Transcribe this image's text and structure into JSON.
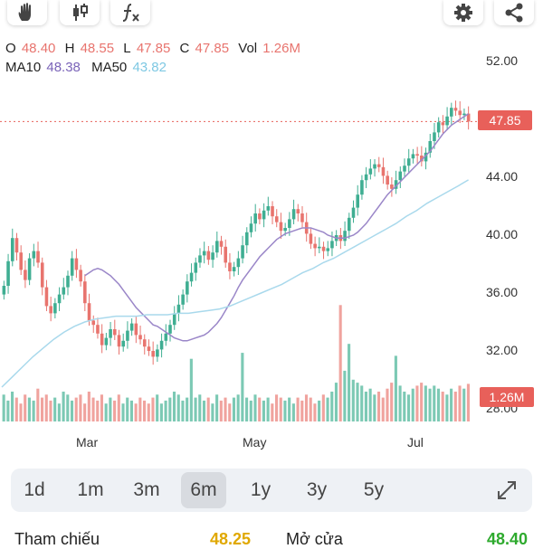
{
  "toolbar": {
    "left": [
      {
        "name": "hand-icon"
      },
      {
        "name": "candlestick-icon"
      },
      {
        "name": "function-icon"
      }
    ],
    "right": [
      {
        "name": "gear-icon"
      },
      {
        "name": "share-icon"
      }
    ]
  },
  "ohlc": {
    "o_label": "O",
    "o_value": "48.40",
    "h_label": "H",
    "h_value": "48.55",
    "l_label": "L",
    "l_value": "47.85",
    "c_label": "C",
    "c_value": "47.85",
    "vol_label": "Vol",
    "vol_value": "1.26M"
  },
  "ma": {
    "ma10_label": "MA10",
    "ma10_value": "48.38",
    "ma50_label": "MA50",
    "ma50_value": "43.82"
  },
  "colors": {
    "up": "#3fae92",
    "down": "#e8746e",
    "ma10": "#9a86c8",
    "ma50": "#a9d9ec",
    "tag": "#e8605a"
  },
  "chart_data": {
    "type": "candlestick",
    "y_ticks": [
      "52.00",
      "48.00",
      "44.00",
      "40.00",
      "36.00",
      "32.00",
      "28.00"
    ],
    "ylim": [
      28,
      52
    ],
    "x_ticks": [
      "Mar",
      "May",
      "Jul"
    ],
    "last_price": "47.85",
    "last_volume": "1.26M",
    "closes": [
      36.5,
      38.2,
      39.8,
      38.8,
      37.6,
      36.9,
      38.4,
      38.9,
      38.1,
      36.4,
      35.1,
      34.6,
      35.3,
      35.9,
      36.4,
      37.2,
      38.4,
      37.6,
      36.8,
      35.3,
      34.1,
      33.8,
      33.2,
      32.4,
      32.9,
      33.5,
      33.1,
      32.3,
      32.7,
      33.4,
      33.9,
      33.1,
      32.8,
      32.3,
      32.0,
      31.6,
      32.1,
      32.7,
      33.2,
      33.8,
      34.6,
      35.2,
      35.9,
      36.8,
      37.4,
      38.1,
      38.6,
      38.9,
      38.3,
      38.8,
      39.6,
      39.2,
      38.1,
      37.5,
      37.8,
      38.4,
      39.3,
      40.2,
      40.8,
      41.5,
      41.1,
      41.7,
      42.0,
      41.3,
      40.9,
      40.3,
      40.5,
      41.1,
      41.8,
      41.5,
      40.9,
      40.1,
      39.4,
      39.1,
      39.2,
      38.9,
      39.1,
      39.6,
      40.0,
      39.6,
      40.3,
      41.2,
      41.9,
      42.8,
      43.8,
      44.2,
      44.6,
      44.9,
      44.7,
      44.1,
      43.5,
      43.2,
      43.8,
      44.4,
      44.8,
      45.3,
      45.6,
      45.5,
      45.1,
      45.7,
      46.5,
      47.1,
      47.8,
      47.6,
      48.2,
      48.8,
      48.6,
      48.3,
      48.4,
      47.85
    ],
    "ma10": [
      37.2,
      37.4,
      37.6,
      37.7,
      37.6,
      37.4,
      37.2,
      36.9,
      36.6,
      36.2,
      35.8,
      35.4,
      35.0,
      34.7,
      34.4,
      34.1,
      33.8,
      33.7,
      33.5,
      33.3,
      33.1,
      32.9,
      32.8,
      32.7,
      32.7,
      32.8,
      32.9,
      33.0,
      33.1,
      33.3,
      33.6,
      33.9,
      34.3,
      34.8,
      35.3,
      35.8,
      36.4,
      36.9,
      37.3,
      37.7,
      38.1,
      38.5,
      38.8,
      39.1,
      39.4,
      39.7,
      39.9,
      40.1,
      40.2,
      40.3,
      40.4,
      40.5,
      40.5,
      40.5,
      40.4,
      40.3,
      40.2,
      40.0,
      39.9,
      39.8,
      39.8,
      39.8,
      39.9,
      40.0,
      40.2,
      40.5,
      40.8,
      41.2,
      41.6,
      42.0,
      42.4,
      42.8,
      43.1,
      43.4,
      43.7,
      44.0,
      44.3,
      44.6,
      44.9,
      45.2,
      45.5,
      45.8,
      46.2,
      46.6,
      47.0,
      47.3,
      47.6,
      47.8,
      48.0,
      48.2,
      48.38
    ],
    "ma50": [
      29.5,
      30.2,
      30.9,
      31.6,
      32.2,
      32.8,
      33.3,
      33.7,
      34.0,
      34.2,
      34.3,
      34.4,
      34.4,
      34.4,
      34.5,
      34.5,
      34.5,
      34.6,
      34.6,
      34.7,
      34.8,
      34.9,
      35.1,
      35.4,
      35.7,
      36.0,
      36.3,
      36.6,
      37.0,
      37.4,
      37.7,
      38.1,
      38.4,
      38.8,
      39.2,
      39.6,
      40.0,
      40.4,
      40.8,
      41.3,
      41.7,
      42.2,
      42.6,
      43.0,
      43.4,
      43.82
    ],
    "volumes": [
      0.9,
      0.7,
      1.0,
      0.8,
      0.6,
      0.9,
      0.8,
      0.7,
      1.1,
      0.8,
      0.9,
      0.7,
      0.8,
      0.6,
      1.0,
      0.9,
      0.7,
      0.8,
      0.9,
      0.6,
      1.0,
      0.8,
      0.7,
      0.9,
      0.6,
      0.8,
      0.7,
      0.9,
      0.6,
      0.8,
      0.7,
      0.6,
      0.8,
      0.7,
      0.6,
      0.8,
      0.9,
      0.6,
      0.7,
      0.8,
      1.0,
      0.9,
      0.7,
      0.8,
      2.1,
      0.8,
      0.9,
      0.7,
      0.8,
      0.6,
      0.9,
      0.7,
      0.8,
      0.6,
      0.8,
      0.9,
      2.3,
      0.8,
      0.7,
      0.9,
      0.8,
      0.7,
      0.8,
      0.6,
      0.9,
      0.8,
      0.7,
      0.8,
      0.6,
      0.8,
      0.7,
      0.9,
      0.8,
      0.6,
      0.7,
      0.9,
      0.8,
      1.0,
      1.3,
      3.9,
      1.7,
      2.6,
      1.4,
      1.3,
      1.2,
      1.0,
      1.1,
      0.9,
      1.0,
      0.8,
      1.1,
      1.3,
      2.2,
      1.2,
      1.0,
      0.9,
      1.1,
      1.2,
      1.3,
      1.2,
      1.1,
      1.2,
      1.1,
      1.0,
      0.9,
      1.1,
      1.0,
      1.2,
      1.1,
      1.26
    ]
  },
  "range_buttons": [
    {
      "label": "1d",
      "active": false
    },
    {
      "label": "1m",
      "active": false
    },
    {
      "label": "3m",
      "active": false
    },
    {
      "label": "6m",
      "active": true
    },
    {
      "label": "1y",
      "active": false
    },
    {
      "label": "3y",
      "active": false
    },
    {
      "label": "5y",
      "active": false
    }
  ],
  "bottom": {
    "ref_label": "Tham chiếu",
    "ref_value": "48.25",
    "open_label": "Mở cửa",
    "open_value": "48.40"
  }
}
